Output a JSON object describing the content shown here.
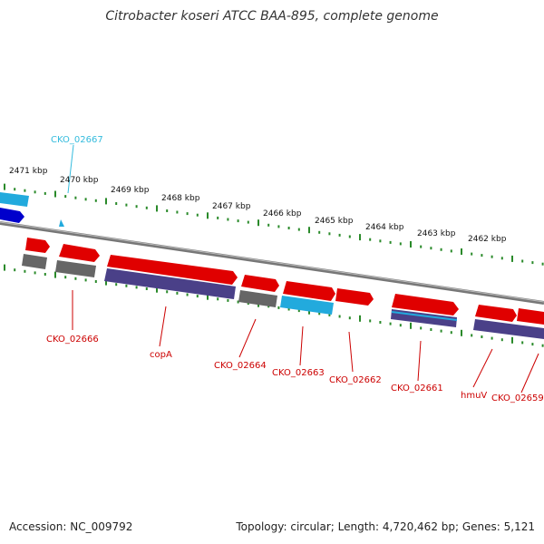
{
  "title": "Citrobacter koseri ATCC BAA-895, complete genome",
  "footer": {
    "accession": "Accession: NC_009792",
    "topology": "Topology: circular; Length: 4,720,462 bp; Genes: 5,121"
  },
  "colors": {
    "ruler_ticks": "#2a8a2a",
    "backbone": "#888888",
    "cds_forward": "#e00000",
    "cds_reverse_blue": "#0000cc",
    "trna": "#22aadd",
    "highlight_label": "#33bbdd",
    "gene_label": "#cc0000",
    "neutral": "#777777",
    "purple_track": "#4a4088"
  },
  "kbp_labels": [
    {
      "text": "2471 kbp"
    },
    {
      "text": "2470 kbp"
    },
    {
      "text": "2469 kbp"
    },
    {
      "text": "2468 kbp"
    },
    {
      "text": "2467 kbp"
    },
    {
      "text": "2466 kbp"
    },
    {
      "text": "2465 kbp"
    },
    {
      "text": "2464 kbp"
    },
    {
      "text": "2463 kbp"
    },
    {
      "text": "2462 kbp"
    }
  ],
  "gene_labels": [
    {
      "text": "CKO_02667",
      "kind": "highlight"
    },
    {
      "text": "CKO_02666",
      "kind": "gene"
    },
    {
      "text": "copA",
      "kind": "gene"
    },
    {
      "text": "CKO_02664",
      "kind": "gene"
    },
    {
      "text": "CKO_02663",
      "kind": "gene"
    },
    {
      "text": "CKO_02662",
      "kind": "gene"
    },
    {
      "text": "CKO_02661",
      "kind": "gene"
    },
    {
      "text": "hmuV",
      "kind": "gene"
    },
    {
      "text": "CKO_02659",
      "kind": "gene"
    }
  ]
}
